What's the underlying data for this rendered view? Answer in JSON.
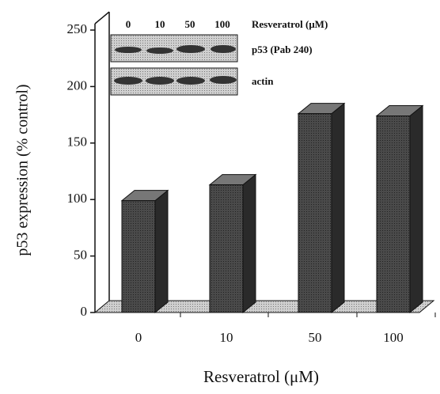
{
  "chart_data": {
    "type": "bar",
    "ylabel": "p53 expression (% control)",
    "xlabel": "Resveratrol (μM)",
    "categories": [
      "0",
      "10",
      "50",
      "100"
    ],
    "values": [
      99,
      113,
      176,
      174
    ],
    "color": "#4a4a4a",
    "ylim": [
      0,
      250
    ],
    "yticks": [
      0,
      50,
      100,
      150,
      200,
      250
    ],
    "inset": {
      "header": "Resveratrol (μM)",
      "lane_labels": [
        "0",
        "10",
        "50",
        "100"
      ],
      "row_labels": [
        "p53 (Pab 240)",
        "actin"
      ]
    }
  }
}
